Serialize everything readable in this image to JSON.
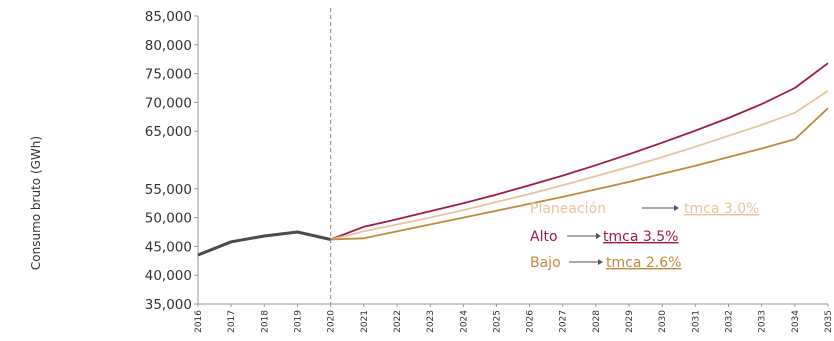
{
  "chart_data": {
    "type": "line",
    "ylabel": "Consumo bruto (GWh)",
    "xlabel": "",
    "ylim": [
      35000,
      85000
    ],
    "yticks": [
      {
        "value": 35000,
        "label": "35,000"
      },
      {
        "value": 40000,
        "label": "40,000"
      },
      {
        "value": 45000,
        "label": "45,000"
      },
      {
        "value": 50000,
        "label": "50,000"
      },
      {
        "value": 55000,
        "label": "55,000"
      },
      {
        "value": 65000,
        "label": "65,000"
      },
      {
        "value": 70000,
        "label": "70,000"
      },
      {
        "value": 75000,
        "label": "75,000"
      },
      {
        "value": 80000,
        "label": "80,000"
      },
      {
        "value": 85000,
        "label": "85,000"
      }
    ],
    "x": [
      "2016",
      "2017",
      "2018",
      "2019",
      "2020",
      "2021",
      "2022",
      "2023",
      "2024",
      "2025",
      "2026",
      "2027",
      "2028",
      "2029",
      "2030",
      "2031",
      "2032",
      "2033",
      "2034",
      "2035"
    ],
    "divider_x": "2020",
    "series": [
      {
        "key": "historico",
        "color": "#4a4a4a",
        "x": [
          "2016",
          "2017",
          "2018",
          "2019",
          "2020"
        ],
        "values": [
          43500,
          45800,
          46800,
          47500,
          46200
        ]
      },
      {
        "key": "alto",
        "name": "Alto",
        "rate": "tmca 3.5%",
        "color": "#9e1b42",
        "x": [
          "2020",
          "2021",
          "2022",
          "2023",
          "2024",
          "2025",
          "2026",
          "2027",
          "2028",
          "2029",
          "2030",
          "2031",
          "2032",
          "2033",
          "2034",
          "2035"
        ],
        "values": [
          46200,
          48400,
          49700,
          51100,
          52500,
          54000,
          55600,
          57300,
          59100,
          61000,
          63000,
          65100,
          67300,
          69700,
          72500,
          76800
        ]
      },
      {
        "key": "planeacion",
        "name": "Planeación",
        "rate": "tmca 3.0%",
        "color": "#e8c39e",
        "x": [
          "2020",
          "2021",
          "2022",
          "2023",
          "2024",
          "2025",
          "2026",
          "2027",
          "2028",
          "2029",
          "2030",
          "2031",
          "2032",
          "2033",
          "2034",
          "2035"
        ],
        "values": [
          46200,
          47600,
          48800,
          50000,
          51300,
          52700,
          54100,
          55600,
          57200,
          58800,
          60500,
          62300,
          64200,
          66100,
          68200,
          72000
        ]
      },
      {
        "key": "bajo",
        "name": "Bajo",
        "rate": "tmca 2.6%",
        "color": "#c08a3e",
        "x": [
          "2020",
          "2021",
          "2022",
          "2023",
          "2024",
          "2025",
          "2026",
          "2027",
          "2028",
          "2029",
          "2030",
          "2031",
          "2032",
          "2033",
          "2034",
          "2035"
        ],
        "values": [
          46200,
          46400,
          47600,
          48800,
          50000,
          51200,
          52400,
          53600,
          54900,
          56200,
          57600,
          59000,
          60500,
          62000,
          63600,
          69000
        ]
      }
    ]
  }
}
